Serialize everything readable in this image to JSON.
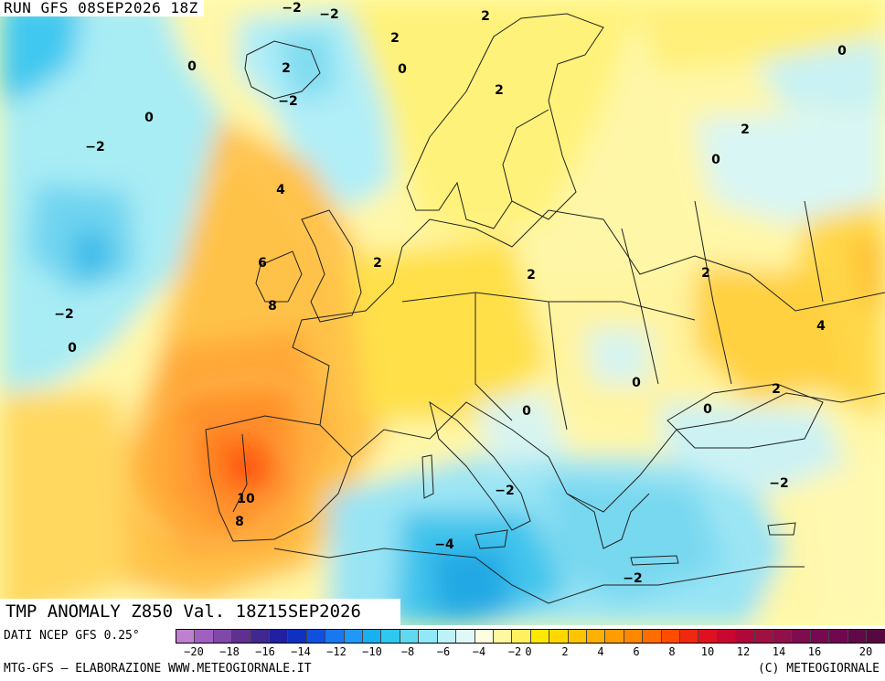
{
  "header": {
    "run_label": "RUN GFS 08SEP2026 18Z"
  },
  "map": {
    "title": "TMP ANOMALY Z850 Val. 18Z15SEP2026",
    "contour_labels": [
      "−2",
      "2",
      "2",
      "0",
      "0",
      "2",
      "−2",
      "2",
      "0",
      "−2",
      "2",
      "0",
      "0",
      "−2",
      "4",
      "2",
      "2",
      "6",
      "2",
      "8",
      "−2",
      "4",
      "0",
      "0",
      "2",
      "0",
      "0",
      "−2",
      "−2",
      "10",
      "8",
      "−4",
      "−2"
    ]
  },
  "legend": {
    "data_source": "DATI NCEP GFS 0.25°",
    "ticks": [
      "−20",
      "−18",
      "−16",
      "−14",
      "−12",
      "−10",
      "−8",
      "−6",
      "−4",
      "−2",
      "0",
      "2",
      "4",
      "6",
      "8",
      "10",
      "12",
      "14",
      "16",
      "20"
    ],
    "colors": [
      "#c080d0",
      "#a060c0",
      "#8048a8",
      "#603090",
      "#402890",
      "#2020a0",
      "#1030c0",
      "#1050e0",
      "#1878f0",
      "#2098f8",
      "#18b0f0",
      "#30c8f0",
      "#60d8f0",
      "#90e8f8",
      "#c0f0f8",
      "#e0f8f8",
      "#fffde0",
      "#fff8a0",
      "#fff060",
      "#ffe800",
      "#ffd800",
      "#ffc400",
      "#ffb000",
      "#ff9c00",
      "#ff8800",
      "#ff6c00",
      "#ff4c00",
      "#f02810",
      "#e01020",
      "#c80830",
      "#b00838",
      "#a01040",
      "#901048",
      "#800c50",
      "#780850",
      "#700850",
      "#600848",
      "#580840"
    ]
  },
  "footer": {
    "left": "MTG-GFS – ELABORAZIONE WWW.METEOGIORNALE.IT",
    "right": "(C) METEOGIORNALE"
  }
}
